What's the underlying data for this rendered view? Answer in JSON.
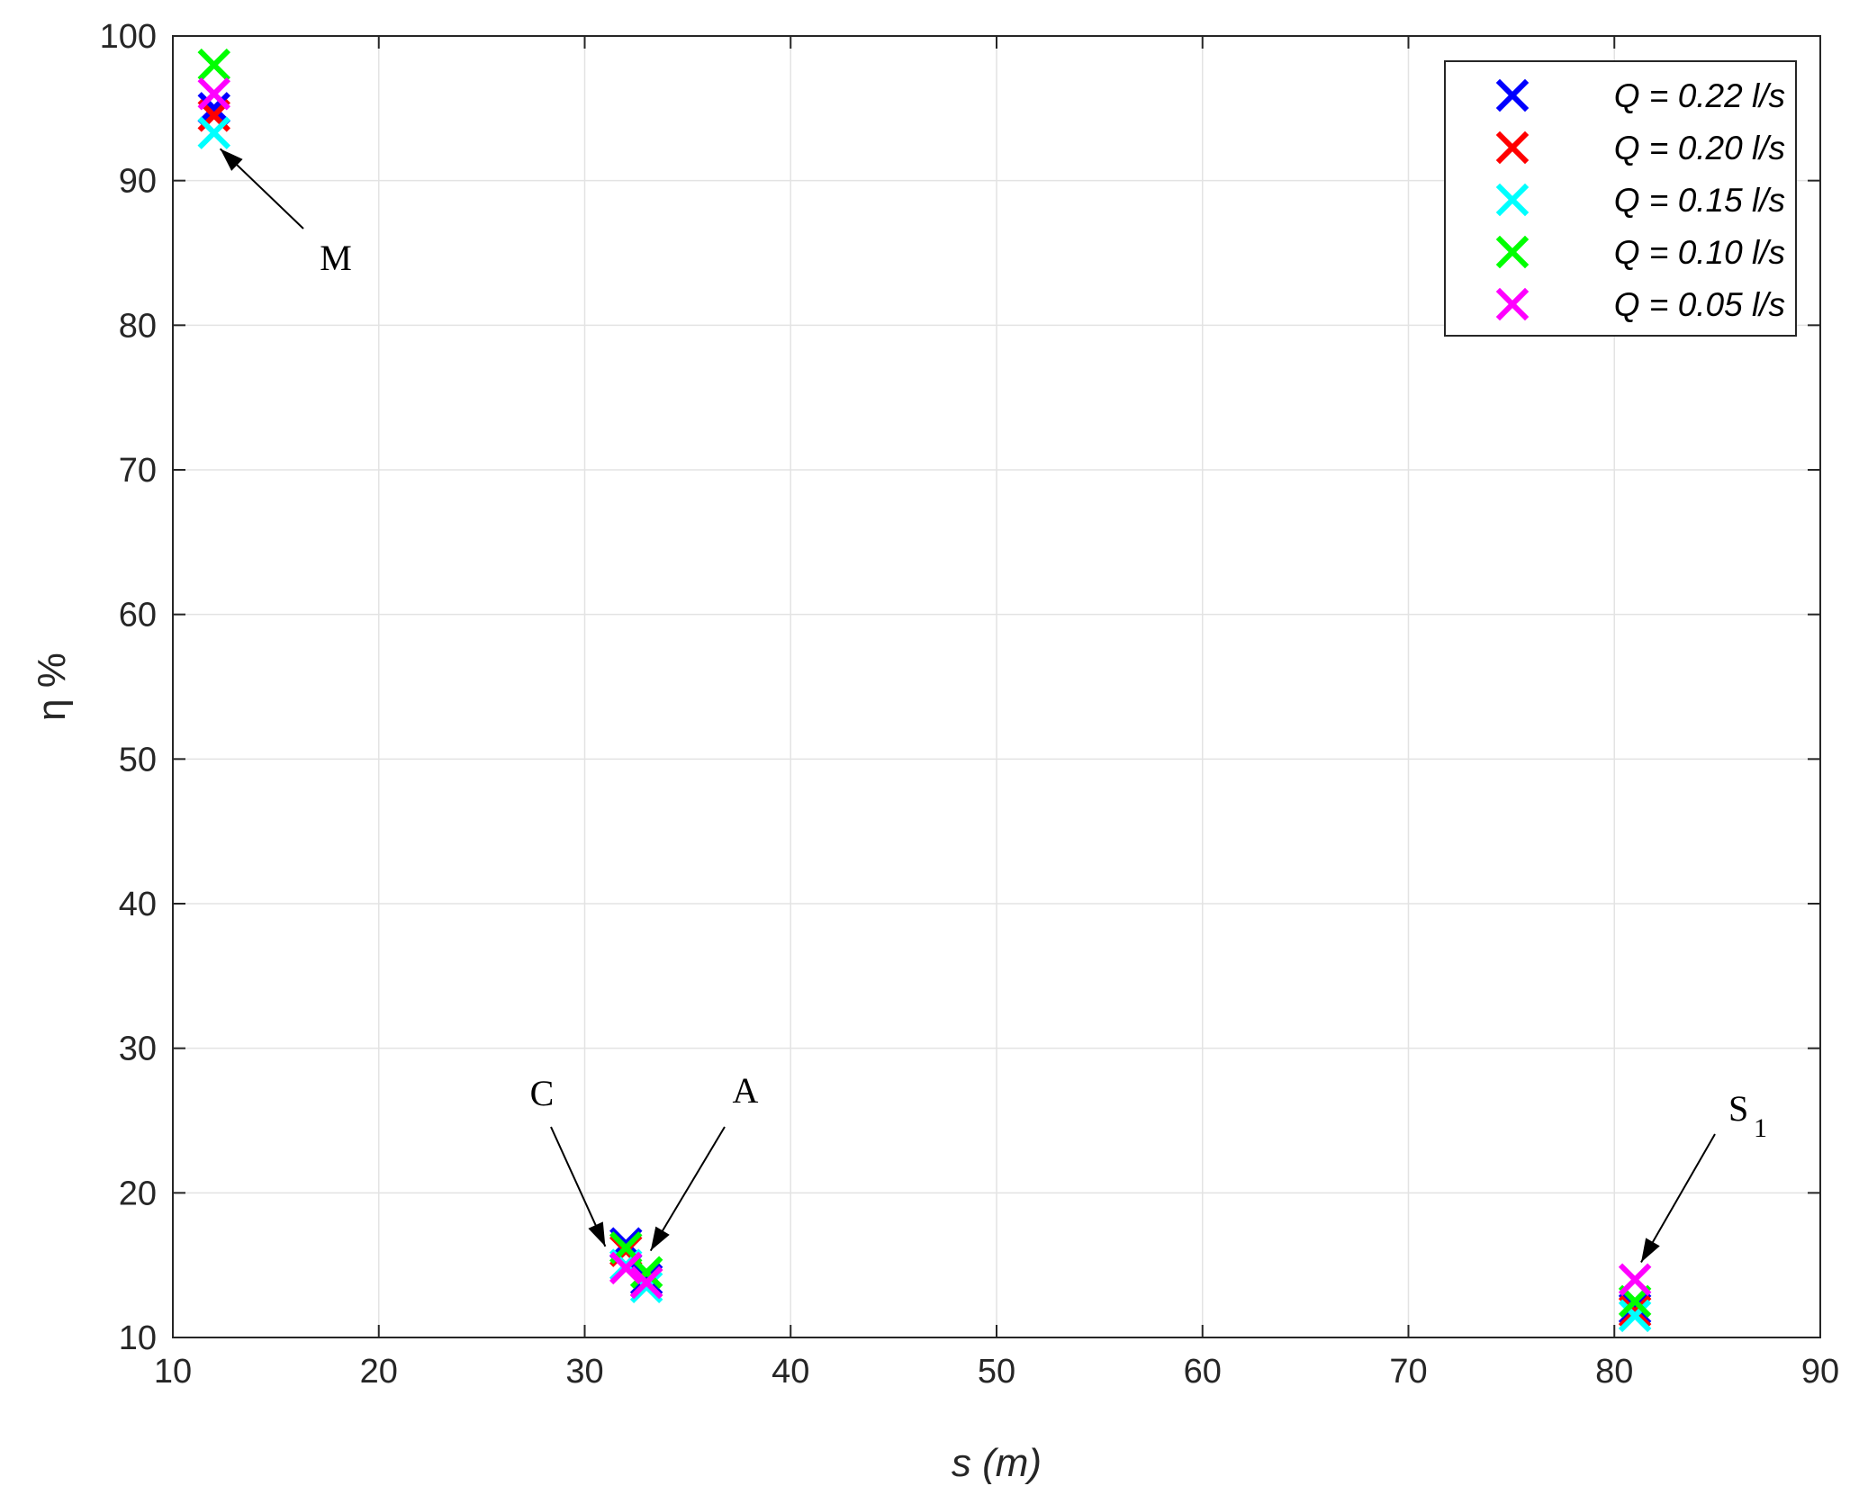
{
  "chart_data": {
    "type": "scatter",
    "title": "",
    "xlabel": "s (m)",
    "ylabel": "η %",
    "xlim": [
      10,
      90
    ],
    "ylim": [
      10,
      100
    ],
    "xticks": [
      10,
      20,
      30,
      40,
      50,
      60,
      70,
      80,
      90
    ],
    "yticks": [
      10,
      20,
      30,
      40,
      50,
      60,
      70,
      80,
      90,
      100
    ],
    "grid": true,
    "legend_position": "top-right",
    "marker": "x",
    "series": [
      {
        "name": "Q = 0.22 l/s",
        "color": "#0000ff",
        "points": [
          [
            12,
            95.0
          ],
          [
            32,
            16.5
          ],
          [
            33,
            14.0
          ],
          [
            81,
            12.0
          ]
        ]
      },
      {
        "name": "Q = 0.20 l/s",
        "color": "#ff0000",
        "points": [
          [
            12,
            94.5
          ],
          [
            32,
            16.0
          ],
          [
            33,
            13.8
          ],
          [
            81,
            11.8
          ]
        ]
      },
      {
        "name": "Q = 0.15 l/s",
        "color": "#00ffff",
        "points": [
          [
            12,
            93.3
          ],
          [
            32,
            15.0
          ],
          [
            33,
            13.5
          ],
          [
            81,
            11.5
          ]
        ]
      },
      {
        "name": "Q = 0.10 l/s",
        "color": "#00ff00",
        "points": [
          [
            12,
            98.0
          ],
          [
            32,
            16.2
          ],
          [
            33,
            14.5
          ],
          [
            81,
            12.5
          ]
        ]
      },
      {
        "name": "Q = 0.05 l/s",
        "color": "#ff00ff",
        "points": [
          [
            12,
            96.0
          ],
          [
            32,
            14.8
          ],
          [
            33,
            13.8
          ],
          [
            81,
            14.0
          ]
        ]
      }
    ],
    "annotations": [
      {
        "text": "M",
        "sub": "",
        "x": 12.3,
        "y": 92.2
      },
      {
        "text": "C",
        "sub": "",
        "x": 31.0,
        "y": 16.3
      },
      {
        "text": "A",
        "sub": "",
        "x": 33.2,
        "y": 16.0
      },
      {
        "text": "S",
        "sub": "1",
        "x": 81.3,
        "y": 15.2
      }
    ]
  }
}
